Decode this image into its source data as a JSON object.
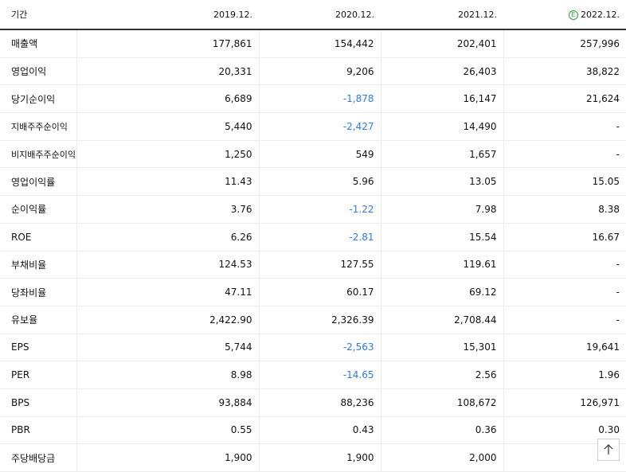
{
  "header": {
    "label": "기간",
    "periods": [
      "2019.12.",
      "2020.12.",
      "2021.12.",
      "2022.12."
    ],
    "estimate_badge": "E"
  },
  "rows": [
    {
      "label": "매출액",
      "values": [
        "177,861",
        "154,442",
        "202,401",
        "257,996"
      ]
    },
    {
      "label": "영업이익",
      "values": [
        "20,331",
        "9,206",
        "26,403",
        "38,822"
      ]
    },
    {
      "label": "당기순이익",
      "values": [
        "6,689",
        "-1,878",
        "16,147",
        "21,624"
      ]
    },
    {
      "label": "지배주주순이익",
      "values": [
        "5,440",
        "-2,427",
        "14,490",
        "-"
      ]
    },
    {
      "label": "비지배주주순이익",
      "values": [
        "1,250",
        "549",
        "1,657",
        "-"
      ]
    },
    {
      "label": "영업이익률",
      "values": [
        "11.43",
        "5.96",
        "13.05",
        "15.05"
      ]
    },
    {
      "label": "순이익률",
      "values": [
        "3.76",
        "-1.22",
        "7.98",
        "8.38"
      ]
    },
    {
      "label": "ROE",
      "values": [
        "6.26",
        "-2.81",
        "15.54",
        "16.67"
      ]
    },
    {
      "label": "부채비율",
      "values": [
        "124.53",
        "127.55",
        "119.61",
        "-"
      ]
    },
    {
      "label": "당좌비율",
      "values": [
        "47.11",
        "60.17",
        "69.12",
        "-"
      ]
    },
    {
      "label": "유보율",
      "values": [
        "2,422.90",
        "2,326.39",
        "2,708.44",
        "-"
      ]
    },
    {
      "label": "EPS",
      "values": [
        "5,744",
        "-2,563",
        "15,301",
        "19,641"
      ]
    },
    {
      "label": "PER",
      "values": [
        "8.98",
        "-14.65",
        "2.56",
        "1.96"
      ]
    },
    {
      "label": "BPS",
      "values": [
        "93,884",
        "88,236",
        "108,672",
        "126,971"
      ]
    },
    {
      "label": "PBR",
      "values": [
        "0.55",
        "0.43",
        "0.36",
        "0.30"
      ]
    },
    {
      "label": "주당배당금",
      "values": [
        "1,900",
        "1,900",
        "2,000",
        ""
      ]
    }
  ],
  "colors": {
    "negative": "#2c7be5",
    "estimate": "#2fa14a"
  },
  "scroll_top_icon": "arrow-up-icon"
}
